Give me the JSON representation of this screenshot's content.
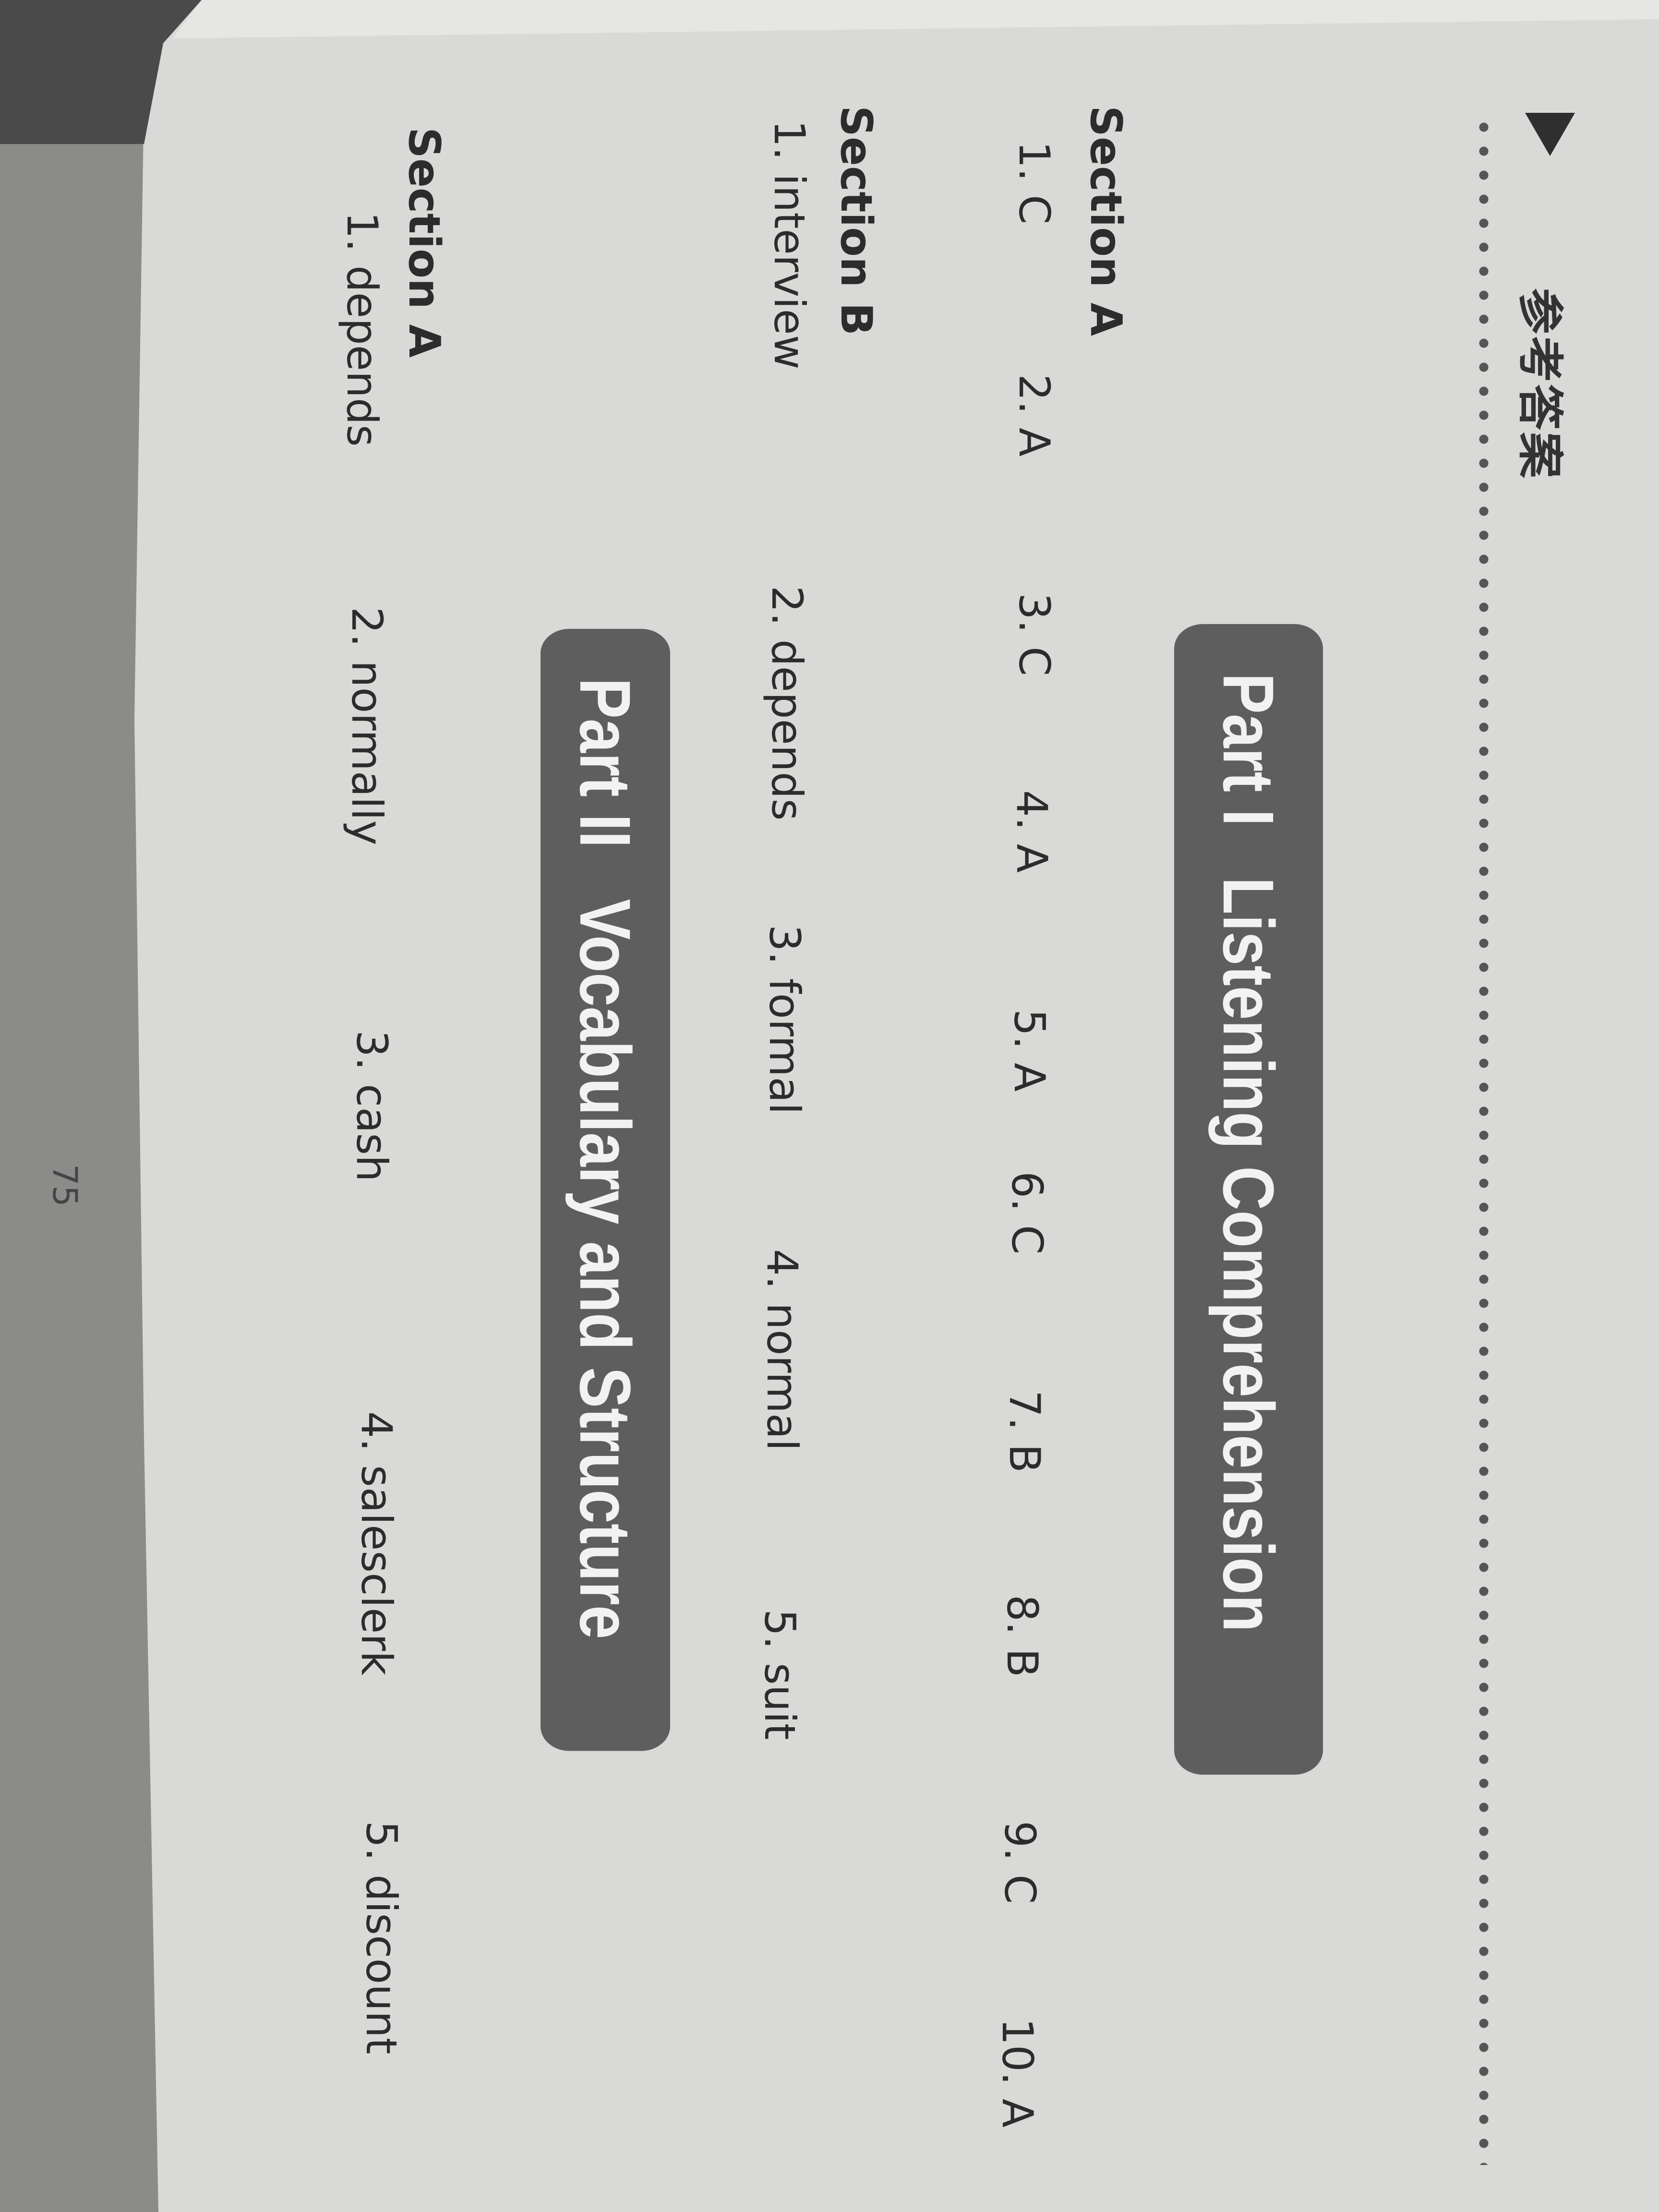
{
  "header": {
    "title": "参考答案"
  },
  "parts": [
    {
      "title": "Part I   Listening Comprehension",
      "sections": [
        {
          "label": "Section A",
          "answers": [
            "1. C",
            "2. A",
            "3. C",
            "4. A",
            "5. A",
            "6. C",
            "7. B",
            "8. B",
            "9. C",
            "10. A"
          ]
        },
        {
          "label": "Section B",
          "answers": [
            "1. interview",
            "2. depends",
            "3. formal",
            "4. normal",
            "5. suit"
          ]
        }
      ]
    },
    {
      "title": "Part II   Vocabulary and Structure",
      "sections": [
        {
          "label": "Section A",
          "answers": [
            "1. depends",
            "2. normally",
            "3. cash",
            "4. salesclerk",
            "5. discount"
          ]
        }
      ]
    }
  ],
  "page_number": "75",
  "colors": {
    "paper": "#d9d9d7",
    "banner": "#5e5e5e",
    "text": "#2c2c2c",
    "fabric": "#8b8b89"
  }
}
